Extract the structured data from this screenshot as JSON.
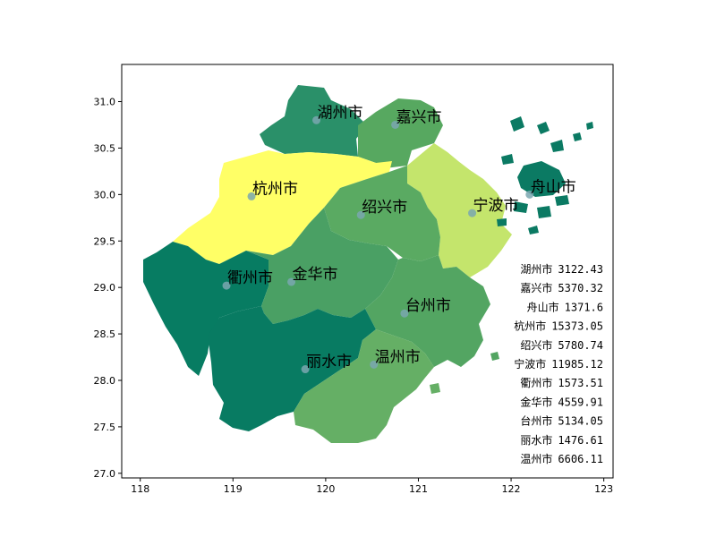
{
  "chart_data": {
    "type": "choropleth-map",
    "xlim": [
      117.8,
      123.1
    ],
    "ylim": [
      26.95,
      31.4
    ],
    "xticks": [
      "118",
      "119",
      "120",
      "121",
      "122",
      "123"
    ],
    "yticks": [
      "27.0",
      "27.5",
      "28.0",
      "28.5",
      "29.0",
      "29.5",
      "30.0",
      "30.5",
      "31.0"
    ],
    "regions": [
      {
        "name": "湖州市",
        "value": "3122.43",
        "lon": 119.9,
        "lat": 30.8,
        "color": "#2a9069"
      },
      {
        "name": "嘉兴市",
        "value": "5370.32",
        "lon": 120.75,
        "lat": 30.75,
        "color": "#57a860"
      },
      {
        "name": "舟山市",
        "value": "1371.6",
        "lon": 122.2,
        "lat": 30.0,
        "color": "#0b7a63"
      },
      {
        "name": "杭州市",
        "value": "15373.05",
        "lon": 119.2,
        "lat": 29.98,
        "color": "#ffff66"
      },
      {
        "name": "绍兴市",
        "value": "5780.74",
        "lon": 120.38,
        "lat": 29.78,
        "color": "#5aaa62"
      },
      {
        "name": "宁波市",
        "value": "11985.12",
        "lon": 121.58,
        "lat": 29.8,
        "color": "#c4e56c"
      },
      {
        "name": "衢州市",
        "value": "1573.51",
        "lon": 118.93,
        "lat": 29.02,
        "color": "#077c62"
      },
      {
        "name": "金华市",
        "value": "4559.91",
        "lon": 119.63,
        "lat": 29.06,
        "color": "#4aa064"
      },
      {
        "name": "台州市",
        "value": "5134.05",
        "lon": 120.85,
        "lat": 28.72,
        "color": "#53a562"
      },
      {
        "name": "丽水市",
        "value": "1476.61",
        "lon": 119.78,
        "lat": 28.12,
        "color": "#087b62"
      },
      {
        "name": "温州市",
        "value": "6606.11",
        "lon": 120.52,
        "lat": 28.17,
        "color": "#65af65"
      }
    ],
    "legend_placement": "right",
    "grid": false
  }
}
